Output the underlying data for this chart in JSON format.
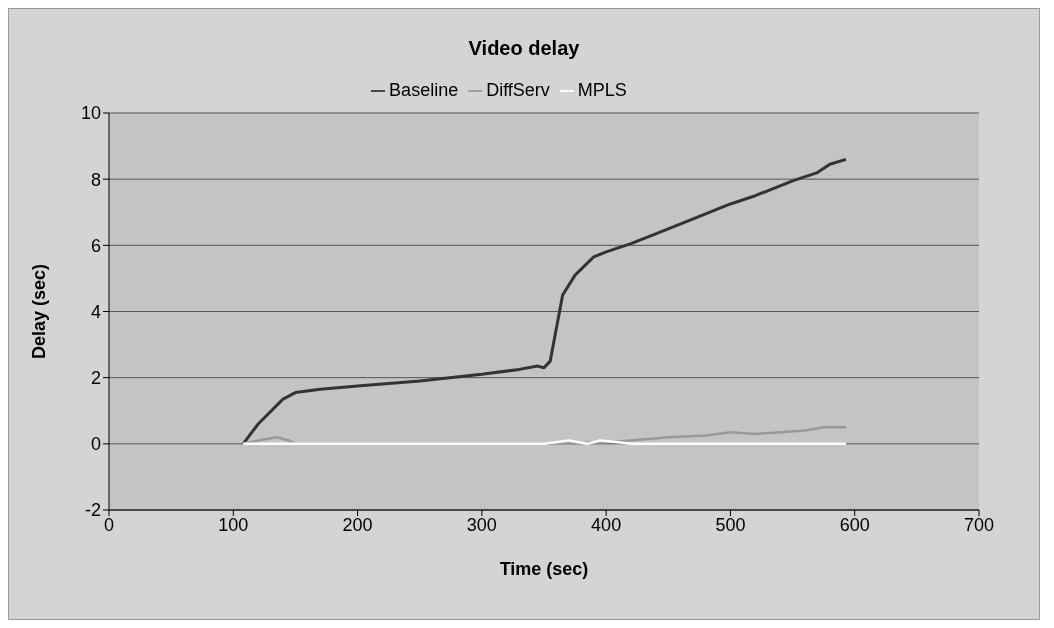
{
  "chart_data": {
    "type": "line",
    "title": "Video delay",
    "xlabel": "Time (sec)",
    "ylabel": "Delay (sec)",
    "xlim": [
      0,
      700
    ],
    "xticks": [
      0,
      100,
      200,
      300,
      400,
      500,
      600,
      700
    ],
    "ylim": [
      -2,
      10
    ],
    "yticks": [
      -2,
      0,
      2,
      4,
      6,
      8,
      10
    ],
    "grid": "y",
    "legend": "top",
    "marker": "none",
    "line_style": "solid",
    "series": [
      {
        "name": "Baseline",
        "color": "#333333",
        "x": [
          108,
          120,
          140,
          150,
          170,
          200,
          250,
          300,
          330,
          345,
          350,
          355,
          360,
          365,
          375,
          390,
          400,
          420,
          450,
          480,
          500,
          520,
          550,
          570,
          580,
          593
        ],
        "values": [
          0,
          0.6,
          1.35,
          1.55,
          1.65,
          1.75,
          1.9,
          2.1,
          2.25,
          2.35,
          2.3,
          2.5,
          3.5,
          4.5,
          5.1,
          5.65,
          5.8,
          6.05,
          6.5,
          6.95,
          7.25,
          7.5,
          7.95,
          8.2,
          8.45,
          8.6
        ]
      },
      {
        "name": "DiffServ",
        "color": "#999999",
        "x": [
          108,
          120,
          135,
          145,
          150,
          350,
          400,
          420,
          450,
          480,
          500,
          520,
          540,
          560,
          575,
          593
        ],
        "values": [
          0,
          0.1,
          0.2,
          0.1,
          0,
          0,
          0.05,
          0.1,
          0.2,
          0.25,
          0.35,
          0.3,
          0.35,
          0.4,
          0.5,
          0.5
        ]
      },
      {
        "name": "MPLS",
        "color": "#ffffff",
        "x": [
          108,
          350,
          370,
          385,
          395,
          410,
          420,
          593
        ],
        "values": [
          0,
          0,
          0.1,
          0,
          0.1,
          0.05,
          0,
          0
        ]
      }
    ]
  }
}
